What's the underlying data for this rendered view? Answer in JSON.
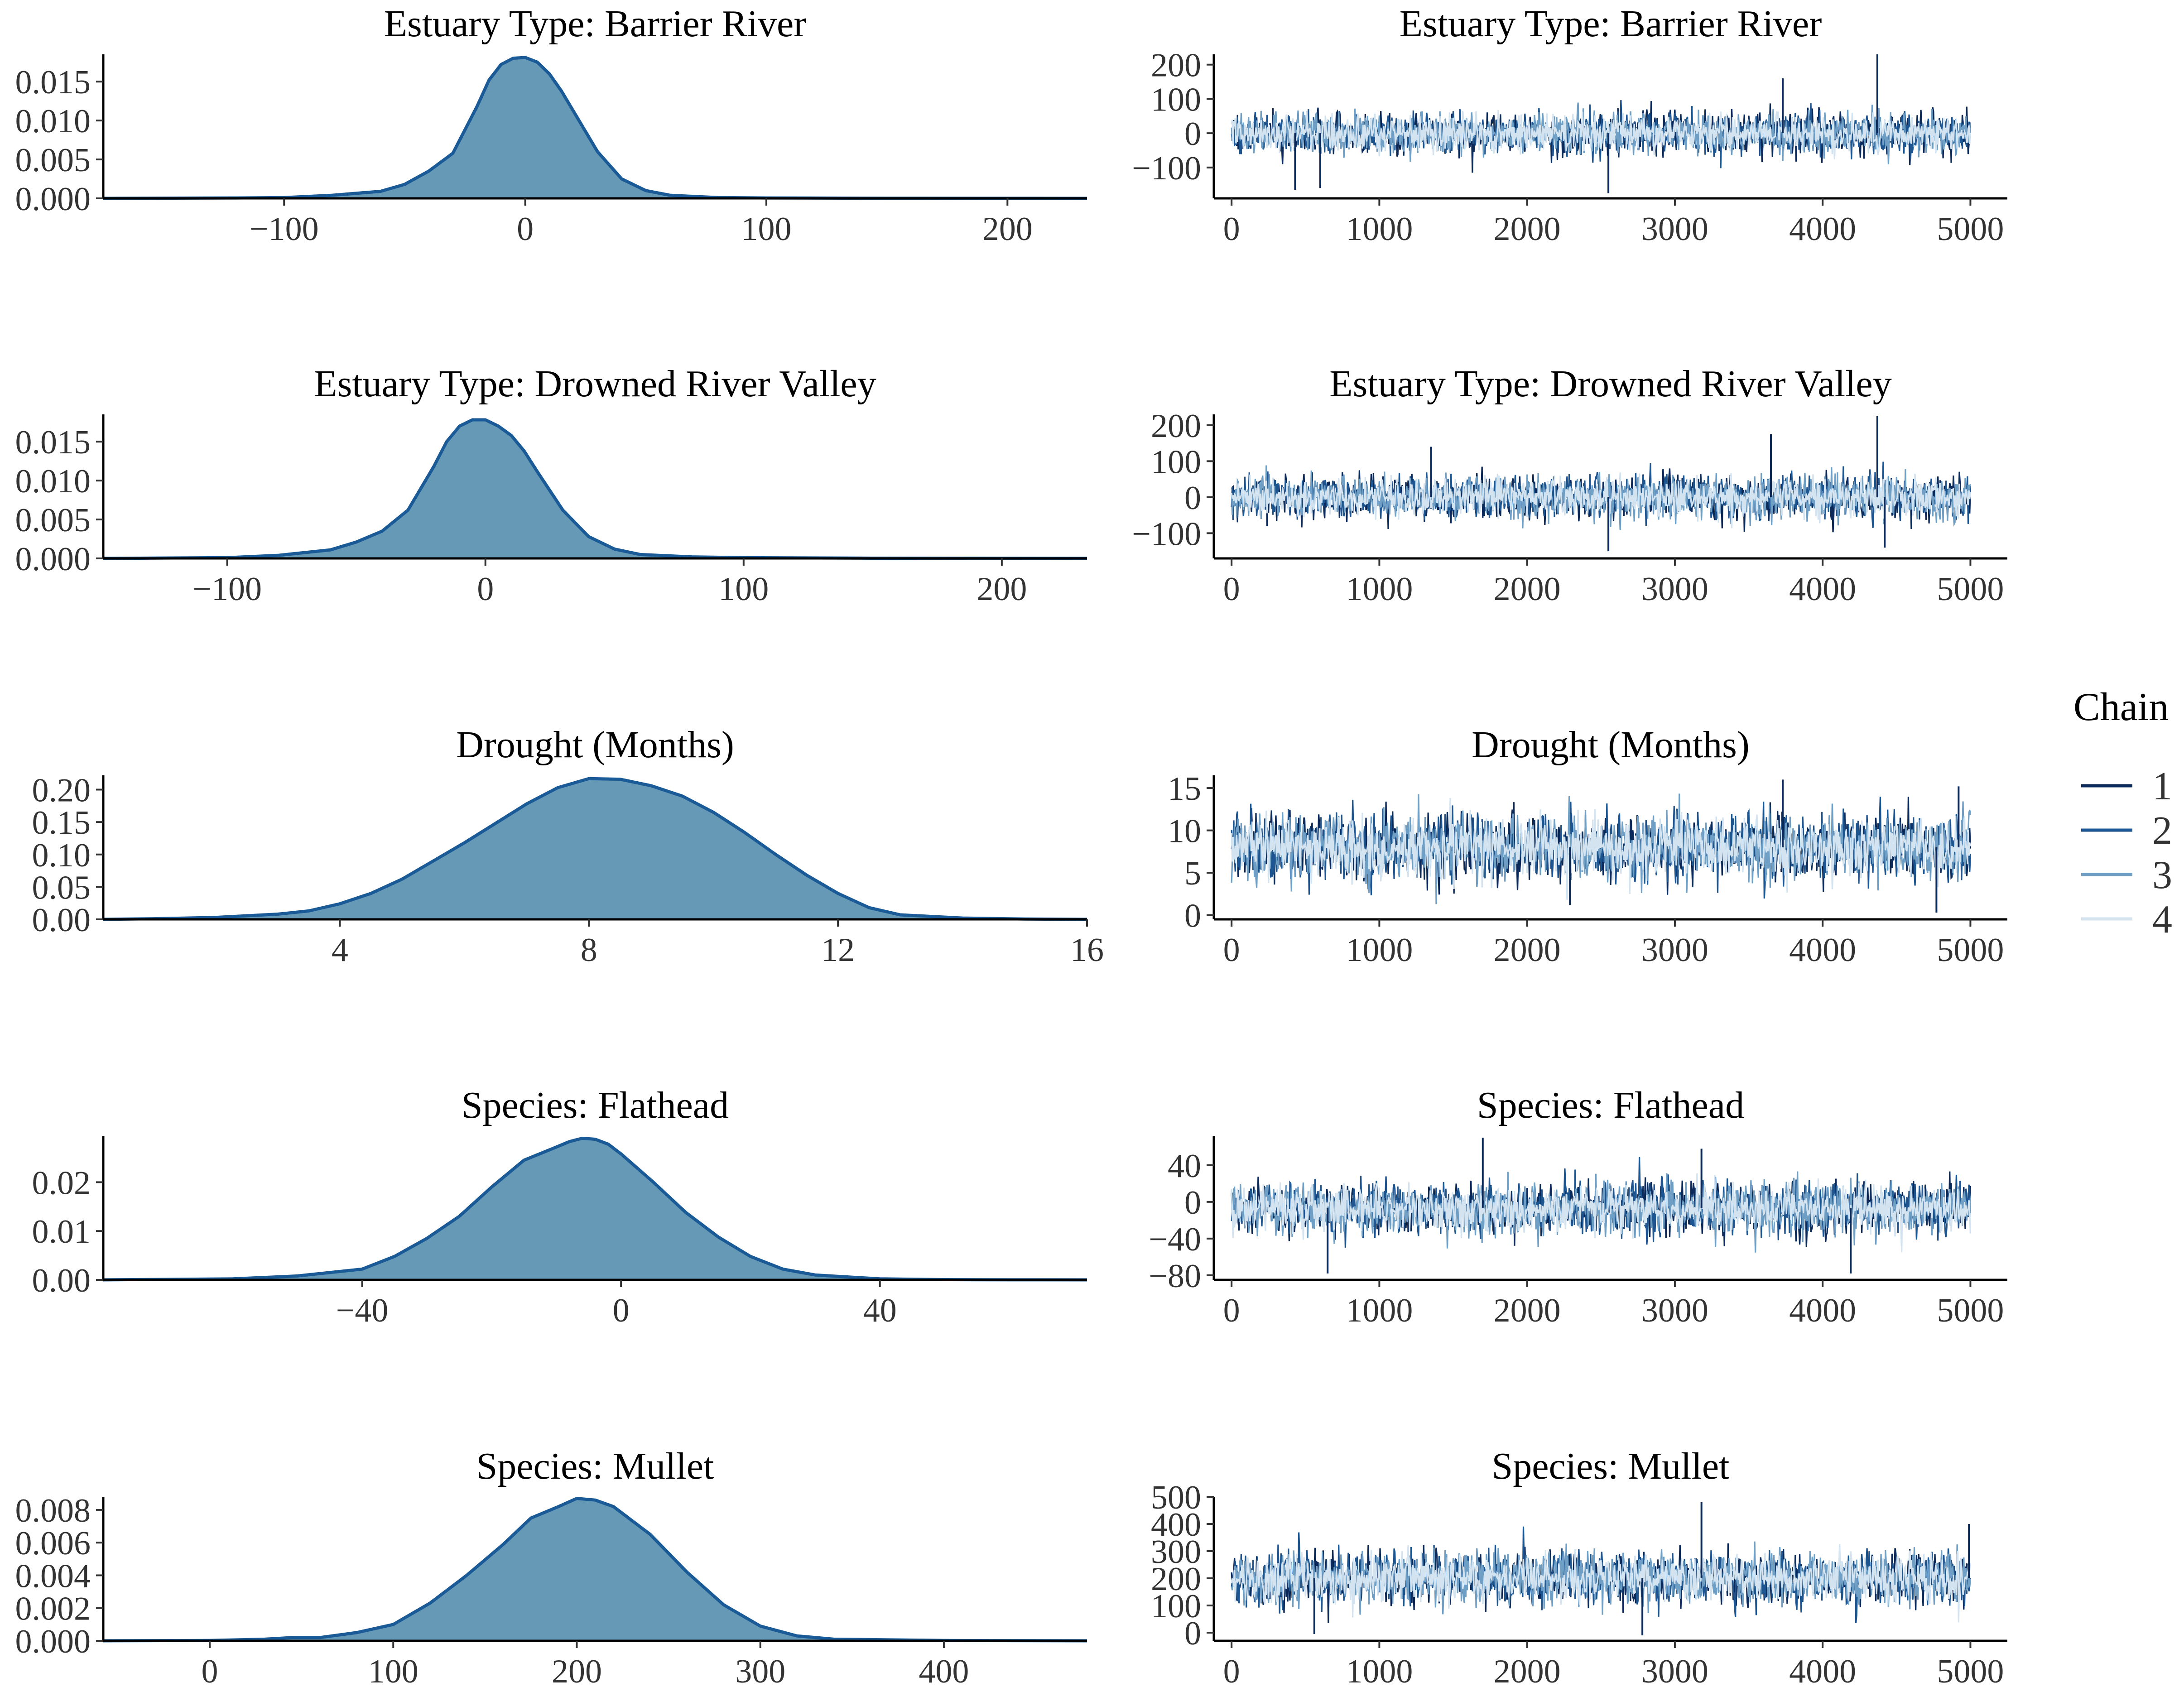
{
  "legend": {
    "title": "Chain",
    "items": [
      {
        "label": "1",
        "color": "#0b2a5a"
      },
      {
        "label": "2",
        "color": "#1d5591"
      },
      {
        "label": "3",
        "color": "#6f9fc4"
      },
      {
        "label": "4",
        "color": "#d3e3f0"
      }
    ]
  },
  "chart_data": [
    {
      "type": "area",
      "title": "Estuary Type: Barrier River",
      "xlabel": "",
      "ylabel": "",
      "xlim": [
        -175,
        233
      ],
      "ylim": [
        0,
        0.0185
      ],
      "xticks": [
        {
          "v": -100,
          "label": "−100"
        },
        {
          "v": 0,
          "label": "0"
        },
        {
          "v": 100,
          "label": "100"
        },
        {
          "v": 200,
          "label": "200"
        }
      ],
      "yticks": [
        {
          "v": 0,
          "label": "0.000"
        },
        {
          "v": 0.005,
          "label": "0.005"
        },
        {
          "v": 0.01,
          "label": "0.010"
        },
        {
          "v": 0.015,
          "label": "0.015"
        }
      ],
      "x": [
        -175,
        -120,
        -100,
        -80,
        -60,
        -50,
        -40,
        -30,
        -20,
        -15,
        -10,
        -5,
        0,
        5,
        10,
        15,
        20,
        30,
        40,
        50,
        60,
        80,
        100,
        150,
        233
      ],
      "y": [
        0,
        5e-05,
        0.0001,
        0.0004,
        0.0009,
        0.0018,
        0.0035,
        0.0058,
        0.0118,
        0.0152,
        0.0172,
        0.018,
        0.0181,
        0.0175,
        0.016,
        0.0138,
        0.0112,
        0.006,
        0.0025,
        0.001,
        0.0004,
        0.0001,
        5e-05,
        2e-05,
        0
      ]
    },
    {
      "type": "line",
      "title": "Estuary Type: Barrier River",
      "xlabel": "",
      "ylabel": "",
      "xlim": [
        -120,
        5250
      ],
      "ylim": [
        -190,
        230
      ],
      "xticks": [
        {
          "v": 0,
          "label": "0"
        },
        {
          "v": 1000,
          "label": "1000"
        },
        {
          "v": 2000,
          "label": "2000"
        },
        {
          "v": 3000,
          "label": "3000"
        },
        {
          "v": 4000,
          "label": "4000"
        },
        {
          "v": 5000,
          "label": "5000"
        }
      ],
      "yticks": [
        {
          "v": -100,
          "label": "−100"
        },
        {
          "v": 0,
          "label": "0"
        },
        {
          "v": 100,
          "label": "100"
        },
        {
          "v": 200,
          "label": "200"
        }
      ],
      "trace_center": 0,
      "trace_sd": 30,
      "trace_iterations": 5000,
      "trace_spikes": [
        {
          "x": 4370,
          "y": 230
        },
        {
          "x": 2550,
          "y": -175
        },
        {
          "x": 3730,
          "y": 160
        },
        {
          "x": 600,
          "y": -160
        },
        {
          "x": 430,
          "y": -165
        }
      ]
    },
    {
      "type": "area",
      "title": "Estuary Type: Drowned River Valley",
      "xlabel": "",
      "ylabel": "",
      "xlim": [
        -148,
        233
      ],
      "ylim": [
        0,
        0.0185
      ],
      "xticks": [
        {
          "v": -100,
          "label": "−100"
        },
        {
          "v": 0,
          "label": "0"
        },
        {
          "v": 100,
          "label": "100"
        },
        {
          "v": 200,
          "label": "200"
        }
      ],
      "yticks": [
        {
          "v": 0,
          "label": "0.000"
        },
        {
          "v": 0.005,
          "label": "0.005"
        },
        {
          "v": 0.01,
          "label": "0.010"
        },
        {
          "v": 0.015,
          "label": "0.015"
        }
      ],
      "x": [
        -148,
        -100,
        -80,
        -60,
        -50,
        -40,
        -30,
        -20,
        -15,
        -10,
        -5,
        0,
        5,
        10,
        15,
        20,
        30,
        40,
        50,
        60,
        80,
        100,
        150,
        233
      ],
      "y": [
        0,
        0.0001,
        0.0004,
        0.0011,
        0.0021,
        0.0035,
        0.0062,
        0.0118,
        0.015,
        0.017,
        0.0178,
        0.0178,
        0.017,
        0.0158,
        0.0138,
        0.0112,
        0.0062,
        0.0028,
        0.0012,
        0.0005,
        0.0002,
        0.0001,
        3e-05,
        0
      ]
    },
    {
      "type": "line",
      "title": "Estuary Type: Drowned River Valley",
      "xlabel": "",
      "ylabel": "",
      "xlim": [
        -120,
        5250
      ],
      "ylim": [
        -170,
        230
      ],
      "xticks": [
        {
          "v": 0,
          "label": "0"
        },
        {
          "v": 1000,
          "label": "1000"
        },
        {
          "v": 2000,
          "label": "2000"
        },
        {
          "v": 3000,
          "label": "3000"
        },
        {
          "v": 4000,
          "label": "4000"
        },
        {
          "v": 5000,
          "label": "5000"
        }
      ],
      "yticks": [
        {
          "v": -100,
          "label": "−100"
        },
        {
          "v": 0,
          "label": "0"
        },
        {
          "v": 100,
          "label": "100"
        },
        {
          "v": 200,
          "label": "200"
        }
      ],
      "trace_center": 0,
      "trace_sd": 30,
      "trace_iterations": 5000,
      "trace_spikes": [
        {
          "x": 4370,
          "y": 225
        },
        {
          "x": 3650,
          "y": 175
        },
        {
          "x": 1350,
          "y": 140
        },
        {
          "x": 2550,
          "y": -150
        },
        {
          "x": 4420,
          "y": -140
        }
      ]
    },
    {
      "type": "area",
      "title": "Drought (Months)",
      "xlabel": "",
      "ylabel": "",
      "xlim": [
        0.2,
        16
      ],
      "ylim": [
        0,
        0.222
      ],
      "xticks": [
        {
          "v": 4,
          "label": "4"
        },
        {
          "v": 8,
          "label": "8"
        },
        {
          "v": 12,
          "label": "12"
        },
        {
          "v": 16,
          "label": "16"
        }
      ],
      "yticks": [
        {
          "v": 0,
          "label": "0.00"
        },
        {
          "v": 0.05,
          "label": "0.05"
        },
        {
          "v": 0.1,
          "label": "0.10"
        },
        {
          "v": 0.15,
          "label": "0.15"
        },
        {
          "v": 0.2,
          "label": "0.20"
        }
      ],
      "x": [
        0.2,
        1,
        2,
        3,
        3.5,
        4,
        4.5,
        5,
        5.5,
        6,
        6.5,
        7,
        7.5,
        8,
        8.5,
        9,
        9.5,
        10,
        10.5,
        11,
        11.5,
        12,
        12.5,
        13,
        14,
        15,
        16
      ],
      "y": [
        0,
        0.001,
        0.003,
        0.008,
        0.013,
        0.024,
        0.04,
        0.062,
        0.09,
        0.118,
        0.148,
        0.178,
        0.203,
        0.217,
        0.216,
        0.206,
        0.19,
        0.165,
        0.134,
        0.1,
        0.068,
        0.04,
        0.018,
        0.007,
        0.002,
        0.0005,
        0
      ]
    },
    {
      "type": "line",
      "title": "Drought (Months)",
      "xlabel": "",
      "ylabel": "",
      "xlim": [
        -120,
        5250
      ],
      "ylim": [
        -0.5,
        16.5
      ],
      "xticks": [
        {
          "v": 0,
          "label": "0"
        },
        {
          "v": 1000,
          "label": "1000"
        },
        {
          "v": 2000,
          "label": "2000"
        },
        {
          "v": 3000,
          "label": "3000"
        },
        {
          "v": 4000,
          "label": "4000"
        },
        {
          "v": 5000,
          "label": "5000"
        }
      ],
      "yticks": [
        {
          "v": 0,
          "label": "0"
        },
        {
          "v": 5,
          "label": "5"
        },
        {
          "v": 10,
          "label": "10"
        },
        {
          "v": 15,
          "label": "15"
        }
      ],
      "trace_center": 8,
      "trace_sd": 1.9,
      "trace_iterations": 5000,
      "trace_spikes": [
        {
          "x": 3730,
          "y": 16
        },
        {
          "x": 4770,
          "y": 0.3
        },
        {
          "x": 4920,
          "y": 15.2
        },
        {
          "x": 2290,
          "y": 1.2
        }
      ]
    },
    {
      "type": "area",
      "title": "Species: Flathead",
      "xlabel": "",
      "ylabel": "",
      "xlim": [
        -80,
        72
      ],
      "ylim": [
        0,
        0.0295
      ],
      "xticks": [
        {
          "v": -40,
          "label": "−40"
        },
        {
          "v": 0,
          "label": "0"
        },
        {
          "v": 40,
          "label": "40"
        }
      ],
      "yticks": [
        {
          "v": 0,
          "label": "0.00"
        },
        {
          "v": 0.01,
          "label": "0.01"
        },
        {
          "v": 0.02,
          "label": "0.02"
        }
      ],
      "x": [
        -80,
        -60,
        -50,
        -40,
        -35,
        -30,
        -25,
        -20,
        -15,
        -10,
        -8,
        -6,
        -4,
        -2,
        0,
        5,
        10,
        15,
        20,
        25,
        30,
        40,
        50,
        60,
        72
      ],
      "y": [
        0,
        0.0002,
        0.0008,
        0.0022,
        0.0048,
        0.0085,
        0.013,
        0.019,
        0.0245,
        0.0272,
        0.0283,
        0.029,
        0.0288,
        0.0278,
        0.0258,
        0.02,
        0.0138,
        0.0088,
        0.0048,
        0.0022,
        0.001,
        0.0002,
        5e-05,
        1e-05,
        0
      ]
    },
    {
      "type": "line",
      "title": "Species: Flathead",
      "xlabel": "",
      "ylabel": "",
      "xlim": [
        -120,
        5250
      ],
      "ylim": [
        -85,
        72
      ],
      "xticks": [
        {
          "v": 0,
          "label": "0"
        },
        {
          "v": 1000,
          "label": "1000"
        },
        {
          "v": 2000,
          "label": "2000"
        },
        {
          "v": 3000,
          "label": "3000"
        },
        {
          "v": 4000,
          "label": "4000"
        },
        {
          "v": 5000,
          "label": "5000"
        }
      ],
      "yticks": [
        {
          "v": -80,
          "label": "−80"
        },
        {
          "v": -40,
          "label": "−40"
        },
        {
          "v": 0,
          "label": "0"
        },
        {
          "v": 40,
          "label": "40"
        }
      ],
      "trace_center": -7,
      "trace_sd": 14,
      "trace_iterations": 5000,
      "trace_spikes": [
        {
          "x": 1700,
          "y": 70
        },
        {
          "x": 650,
          "y": -78
        },
        {
          "x": 4190,
          "y": -78
        },
        {
          "x": 3180,
          "y": 58
        }
      ]
    },
    {
      "type": "area",
      "title": "Species: Mullet",
      "xlabel": "",
      "ylabel": "",
      "xlim": [
        -58,
        478
      ],
      "ylim": [
        0,
        0.0088
      ],
      "xticks": [
        {
          "v": 0,
          "label": "0"
        },
        {
          "v": 100,
          "label": "100"
        },
        {
          "v": 200,
          "label": "200"
        },
        {
          "v": 300,
          "label": "300"
        },
        {
          "v": 400,
          "label": "400"
        }
      ],
      "yticks": [
        {
          "v": 0,
          "label": "0.000"
        },
        {
          "v": 0.002,
          "label": "0.002"
        },
        {
          "v": 0.004,
          "label": "0.004"
        },
        {
          "v": 0.006,
          "label": "0.006"
        },
        {
          "v": 0.008,
          "label": "0.008"
        }
      ],
      "x": [
        -58,
        0,
        30,
        45,
        60,
        80,
        100,
        120,
        140,
        160,
        175,
        190,
        200,
        210,
        220,
        240,
        260,
        280,
        300,
        320,
        340,
        400,
        478
      ],
      "y": [
        0,
        2e-05,
        0.0001,
        0.0002,
        0.0002,
        0.0005,
        0.001,
        0.0023,
        0.004,
        0.0059,
        0.0075,
        0.0082,
        0.0087,
        0.0086,
        0.0082,
        0.0065,
        0.0042,
        0.0022,
        0.0009,
        0.0003,
        0.0001,
        2e-05,
        0
      ]
    },
    {
      "type": "line",
      "title": "Species: Mullet",
      "xlabel": "",
      "ylabel": "",
      "xlim": [
        -120,
        5250
      ],
      "ylim": [
        -30,
        500
      ],
      "xticks": [
        {
          "v": 0,
          "label": "0"
        },
        {
          "v": 1000,
          "label": "1000"
        },
        {
          "v": 2000,
          "label": "2000"
        },
        {
          "v": 3000,
          "label": "3000"
        },
        {
          "v": 4000,
          "label": "4000"
        },
        {
          "v": 5000,
          "label": "5000"
        }
      ],
      "yticks": [
        {
          "v": 0,
          "label": "0"
        },
        {
          "v": 100,
          "label": "100"
        },
        {
          "v": 200,
          "label": "200"
        },
        {
          "v": 300,
          "label": "300"
        },
        {
          "v": 400,
          "label": "400"
        },
        {
          "v": 500,
          "label": "500"
        }
      ],
      "trace_center": 200,
      "trace_sd": 48,
      "trace_iterations": 5000,
      "trace_spikes": [
        {
          "x": 3180,
          "y": 480
        },
        {
          "x": 560,
          "y": -5
        },
        {
          "x": 2780,
          "y": -10
        },
        {
          "x": 4990,
          "y": 400
        }
      ]
    }
  ]
}
